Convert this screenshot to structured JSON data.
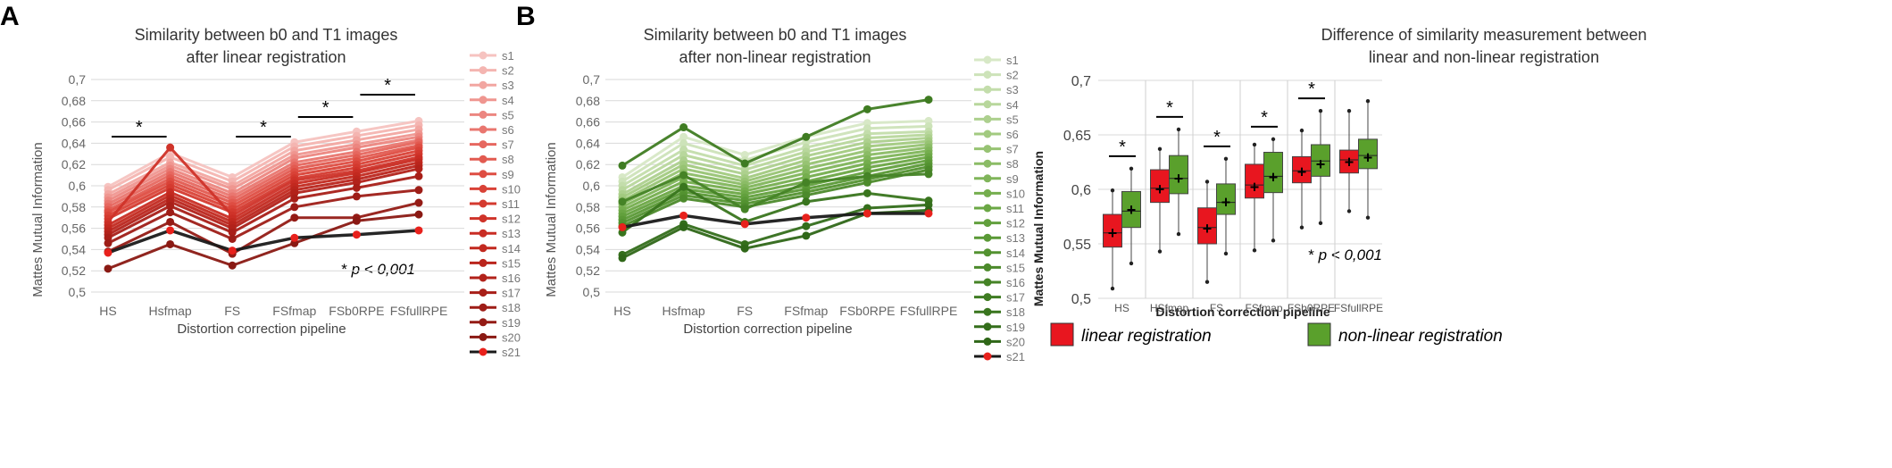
{
  "panel_labels": {
    "a": "A",
    "b": "B"
  },
  "significance": {
    "marker": "*",
    "note_prefix": "* ",
    "note_italic": "p < 0,001"
  },
  "colors": {
    "linear_ramp": [
      "#f6c3c0",
      "#f4b5b1",
      "#f2a6a1",
      "#ef9690",
      "#ec8680",
      "#e9766f",
      "#e6675f",
      "#e25a50",
      "#de4d42",
      "#d94237",
      "#d43a2f",
      "#cf3329",
      "#c92d24",
      "#c2291f",
      "#ba251c",
      "#b2221a",
      "#a81f18",
      "#9e1d17",
      "#941b15",
      "#8a1913"
    ],
    "nonlinear_ramp": [
      "#d7e8c6",
      "#cde3b9",
      "#c3ddab",
      "#b8d79c",
      "#add08e",
      "#a2ca80",
      "#97c373",
      "#8bbc66",
      "#80b55a",
      "#75ae4e",
      "#6ba745",
      "#62a03d",
      "#5a9936",
      "#539230",
      "#4c8a2b",
      "#458326",
      "#3f7c22",
      "#39751e",
      "#346e1b",
      "#2f6718"
    ],
    "reference_line": "#1a1a1a",
    "reference_marker": "#e8211c",
    "box_linear": "#e8161f",
    "box_nonlinear": "#5aa02c"
  },
  "chart_data": [
    {
      "id": "A",
      "type": "line",
      "title": "Similarity between b0 and T1 images after linear registration",
      "title_lines": [
        "Similarity between b0 and T1 images",
        "after linear registration"
      ],
      "xlabel": "Distortion correction pipeline",
      "ylabel": "Mattes Mutual Information",
      "ylim": [
        0.5,
        0.7
      ],
      "yticks": [
        "0,5",
        "0,52",
        "0,54",
        "0,56",
        "0,58",
        "0,6",
        "0,62",
        "0,64",
        "0,66",
        "0,68",
        "0,7"
      ],
      "categories": [
        "HS",
        "Hsfmap",
        "FS",
        "FSfmap",
        "FSb0RPE",
        "FSfullRPE"
      ],
      "significance": [
        [
          0,
          1
        ],
        [
          2,
          3
        ],
        [
          3,
          4
        ],
        [
          4,
          5
        ]
      ],
      "note": "* p < 0,001",
      "series": [
        {
          "name": "s1",
          "values": [
            0.599,
            0.631,
            0.608,
            0.641,
            0.651,
            0.661
          ]
        },
        {
          "name": "s2",
          "values": [
            0.596,
            0.627,
            0.604,
            0.637,
            0.647,
            0.657
          ]
        },
        {
          "name": "s3",
          "values": [
            0.592,
            0.622,
            0.6,
            0.633,
            0.643,
            0.653
          ]
        },
        {
          "name": "s4",
          "values": [
            0.589,
            0.619,
            0.597,
            0.629,
            0.639,
            0.649
          ]
        },
        {
          "name": "s5",
          "values": [
            0.586,
            0.616,
            0.593,
            0.626,
            0.636,
            0.646
          ]
        },
        {
          "name": "s6",
          "values": [
            0.583,
            0.613,
            0.59,
            0.622,
            0.632,
            0.643
          ]
        },
        {
          "name": "s7",
          "values": [
            0.58,
            0.61,
            0.587,
            0.619,
            0.629,
            0.641
          ]
        },
        {
          "name": "s8",
          "values": [
            0.577,
            0.607,
            0.584,
            0.616,
            0.626,
            0.638
          ]
        },
        {
          "name": "s9",
          "values": [
            0.575,
            0.604,
            0.581,
            0.613,
            0.623,
            0.636
          ]
        },
        {
          "name": "s10",
          "values": [
            0.572,
            0.601,
            0.578,
            0.61,
            0.62,
            0.633
          ]
        },
        {
          "name": "s11",
          "values": [
            0.569,
            0.598,
            0.575,
            0.607,
            0.617,
            0.63
          ]
        },
        {
          "name": "s12",
          "values": [
            0.566,
            0.636,
            0.572,
            0.605,
            0.614,
            0.627
          ]
        },
        {
          "name": "s13",
          "values": [
            0.563,
            0.594,
            0.569,
            0.602,
            0.612,
            0.625
          ]
        },
        {
          "name": "s14",
          "values": [
            0.56,
            0.591,
            0.566,
            0.599,
            0.609,
            0.622
          ]
        },
        {
          "name": "s15",
          "values": [
            0.557,
            0.588,
            0.563,
            0.596,
            0.606,
            0.619
          ]
        },
        {
          "name": "s16",
          "values": [
            0.554,
            0.585,
            0.56,
            0.593,
            0.603,
            0.616
          ]
        },
        {
          "name": "s17",
          "values": [
            0.551,
            0.581,
            0.556,
            0.588,
            0.598,
            0.609
          ]
        },
        {
          "name": "s18",
          "values": [
            0.546,
            0.575,
            0.55,
            0.58,
            0.59,
            0.596
          ]
        },
        {
          "name": "s19",
          "values": [
            0.538,
            0.566,
            0.536,
            0.57,
            0.57,
            0.584
          ]
        },
        {
          "name": "s20",
          "values": [
            0.522,
            0.545,
            0.525,
            0.546,
            0.567,
            0.573
          ]
        },
        {
          "name": "s21",
          "values": [
            0.537,
            0.558,
            0.539,
            0.551,
            0.554,
            0.558
          ]
        }
      ]
    },
    {
      "id": "B",
      "type": "line",
      "title": "Similarity between b0 and T1 images after non-linear registration",
      "title_lines": [
        "Similarity between b0 and T1 images",
        "after non-linear registration"
      ],
      "xlabel": "Distortion correction pipeline",
      "ylabel": "Mattes Mutual Information",
      "ylim": [
        0.5,
        0.7
      ],
      "yticks": [
        "0,5",
        "0,52",
        "0,54",
        "0,56",
        "0,58",
        "0,6",
        "0,62",
        "0,64",
        "0,66",
        "0,68",
        "0,7"
      ],
      "categories": [
        "HS",
        "Hsfmap",
        "FS",
        "FSfmap",
        "FSb0RPE",
        "FSfullRPE"
      ],
      "series": [
        {
          "name": "s1",
          "values": [
            0.608,
            0.646,
            0.629,
            0.646,
            0.659,
            0.661
          ]
        },
        {
          "name": "s2",
          "values": [
            0.604,
            0.64,
            0.624,
            0.641,
            0.654,
            0.656
          ]
        },
        {
          "name": "s3",
          "values": [
            0.6,
            0.634,
            0.619,
            0.636,
            0.649,
            0.651
          ]
        },
        {
          "name": "s4",
          "values": [
            0.596,
            0.629,
            0.615,
            0.632,
            0.645,
            0.648
          ]
        },
        {
          "name": "s5",
          "values": [
            0.592,
            0.624,
            0.611,
            0.628,
            0.641,
            0.645
          ]
        },
        {
          "name": "s6",
          "values": [
            0.589,
            0.62,
            0.607,
            0.624,
            0.637,
            0.642
          ]
        },
        {
          "name": "s7",
          "values": [
            0.586,
            0.616,
            0.604,
            0.62,
            0.633,
            0.639
          ]
        },
        {
          "name": "s8",
          "values": [
            0.583,
            0.612,
            0.601,
            0.616,
            0.629,
            0.636
          ]
        },
        {
          "name": "s9",
          "values": [
            0.58,
            0.608,
            0.598,
            0.612,
            0.625,
            0.633
          ]
        },
        {
          "name": "s10",
          "values": [
            0.577,
            0.604,
            0.595,
            0.608,
            0.621,
            0.63
          ]
        },
        {
          "name": "s11",
          "values": [
            0.574,
            0.6,
            0.592,
            0.604,
            0.617,
            0.627
          ]
        },
        {
          "name": "s12",
          "values": [
            0.571,
            0.597,
            0.589,
            0.6,
            0.613,
            0.624
          ]
        },
        {
          "name": "s13",
          "values": [
            0.568,
            0.594,
            0.586,
            0.597,
            0.609,
            0.621
          ]
        },
        {
          "name": "s14",
          "values": [
            0.565,
            0.591,
            0.583,
            0.594,
            0.606,
            0.618
          ]
        },
        {
          "name": "s15",
          "values": [
            0.562,
            0.588,
            0.58,
            0.591,
            0.603,
            0.615
          ]
        },
        {
          "name": "s16",
          "values": [
            0.585,
            0.61,
            0.578,
            0.603,
            0.609,
            0.611
          ]
        },
        {
          "name": "s17",
          "values": [
            0.619,
            0.655,
            0.621,
            0.646,
            0.672,
            0.681
          ]
        },
        {
          "name": "s18",
          "values": [
            0.556,
            0.599,
            0.566,
            0.585,
            0.593,
            0.586
          ]
        },
        {
          "name": "s19",
          "values": [
            0.535,
            0.564,
            0.545,
            0.562,
            0.579,
            0.582
          ]
        },
        {
          "name": "s20",
          "values": [
            0.532,
            0.561,
            0.541,
            0.553,
            0.574,
            0.577
          ]
        },
        {
          "name": "s21",
          "values": [
            0.561,
            0.572,
            0.564,
            0.57,
            0.574,
            0.574
          ]
        }
      ]
    },
    {
      "id": "C",
      "type": "box",
      "title": "Difference of similarity measurement between linear and non-linear registration",
      "title_lines": [
        "Difference of similarity measurement between",
        "linear and non-linear registration"
      ],
      "xlabel": "Distortion correction pipeline",
      "ylabel": "Mattes Mutual Information",
      "ylim": [
        0.5,
        0.7
      ],
      "yticks": [
        "0,5",
        "0,55",
        "0,6",
        "0,65",
        "0,7"
      ],
      "categories": [
        "HS",
        "HSfmap",
        "FS",
        "FSfmap",
        "FSb0RPE",
        "FSfullRPE"
      ],
      "significant_categories": [
        "HS",
        "HSfmap",
        "FS",
        "FSfmap",
        "FSb0RPE"
      ],
      "note": "* p < 0,001",
      "legend": [
        {
          "name": "linear registration",
          "color": "#e8161f"
        },
        {
          "name": "non-linear registration",
          "color": "#5aa02c"
        }
      ],
      "series": [
        {
          "name": "linear registration",
          "boxes": [
            {
              "min": 0.509,
              "q1": 0.547,
              "median": 0.56,
              "q3": 0.577,
              "max": 0.599,
              "mean": 0.56
            },
            {
              "min": 0.543,
              "q1": 0.588,
              "median": 0.601,
              "q3": 0.618,
              "max": 0.637,
              "mean": 0.6
            },
            {
              "min": 0.515,
              "q1": 0.55,
              "median": 0.565,
              "q3": 0.583,
              "max": 0.607,
              "mean": 0.564
            },
            {
              "min": 0.544,
              "q1": 0.592,
              "median": 0.604,
              "q3": 0.623,
              "max": 0.641,
              "mean": 0.602
            },
            {
              "min": 0.565,
              "q1": 0.606,
              "median": 0.617,
              "q3": 0.63,
              "max": 0.654,
              "mean": 0.616
            },
            {
              "min": 0.58,
              "q1": 0.615,
              "median": 0.627,
              "q3": 0.636,
              "max": 0.672,
              "mean": 0.625
            }
          ]
        },
        {
          "name": "non-linear registration",
          "boxes": [
            {
              "min": 0.532,
              "q1": 0.565,
              "median": 0.58,
              "q3": 0.598,
              "max": 0.619,
              "mean": 0.581
            },
            {
              "min": 0.559,
              "q1": 0.596,
              "median": 0.61,
              "q3": 0.631,
              "max": 0.655,
              "mean": 0.61
            },
            {
              "min": 0.541,
              "q1": 0.577,
              "median": 0.588,
              "q3": 0.605,
              "max": 0.628,
              "mean": 0.588
            },
            {
              "min": 0.553,
              "q1": 0.597,
              "median": 0.612,
              "q3": 0.634,
              "max": 0.646,
              "mean": 0.611
            },
            {
              "min": 0.569,
              "q1": 0.612,
              "median": 0.626,
              "q3": 0.641,
              "max": 0.672,
              "mean": 0.623
            },
            {
              "min": 0.574,
              "q1": 0.619,
              "median": 0.631,
              "q3": 0.646,
              "max": 0.681,
              "mean": 0.629
            }
          ]
        }
      ]
    }
  ]
}
